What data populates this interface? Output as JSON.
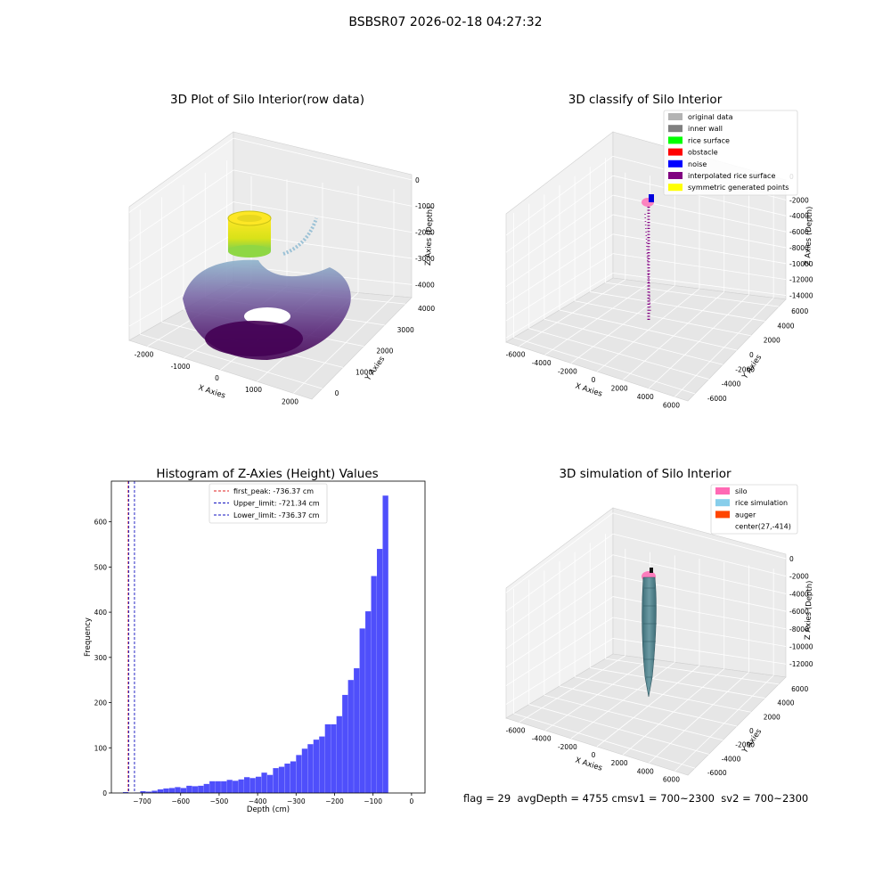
{
  "figure": {
    "suptitle": "BSBSR07 2026-02-18 04:27:32",
    "footer": {
      "flag": "flag = 29",
      "avg_depth": "avgDepth = 4755 cm",
      "sv1": "sv1 = 700~2300",
      "sv2": "sv2 = 700~2300"
    }
  },
  "colors": {
    "histogram_bar": "#4f4ffb",
    "first_peak_line": "#e02020",
    "limit_lines": "#1010c0",
    "legend_original": "#b3b3b3",
    "legend_inner_wall": "#808080",
    "legend_rice_surface": "#00ff00",
    "legend_obstacle": "#ff0000",
    "legend_noise": "#0000ff",
    "legend_interpolated": "#800080",
    "legend_symmetric": "#ffff00",
    "legend_silo": "#ff69b4",
    "legend_rice_sim": "#87ceeb",
    "legend_auger": "#ff4500"
  },
  "chart_data": [
    {
      "type": "scatter3d",
      "title": "3D Plot of Silo Interior(row data)",
      "xlabel": "X Axies",
      "ylabel": "Y Axies",
      "zlabel": "Z Axies (Depth)",
      "x_ticks": [
        "-2000",
        "-1000",
        "0",
        "1000",
        "2000"
      ],
      "y_ticks": [
        "0",
        "1000",
        "2000",
        "3000",
        "4000"
      ],
      "z_ticks": [
        "0",
        "-1000",
        "-2000",
        "-3000",
        "-4000"
      ],
      "xlim": [
        -2500,
        2500
      ],
      "ylim": [
        -500,
        4300
      ],
      "zlim": [
        -4500,
        200
      ],
      "colormap": "viridis",
      "grid": true
    },
    {
      "type": "scatter3d",
      "title": "3D classify of Silo Interior",
      "xlabel": "X Axies",
      "ylabel": "Y Axies",
      "zlabel": "Z Axies (Depth)",
      "x_ticks": [
        "-6000",
        "-4000",
        "-2000",
        "0",
        "2000",
        "4000",
        "6000"
      ],
      "y_ticks": [
        "-6000",
        "-4000",
        "-2000",
        "0",
        "2000",
        "4000",
        "6000"
      ],
      "z_ticks": [
        "-2000",
        "-4000",
        "-6000",
        "-8000",
        "-10000",
        "-12000",
        "-14000"
      ],
      "z_top_tick": "0",
      "xlim": [
        -7000,
        7000
      ],
      "ylim": [
        -7000,
        7000
      ],
      "zlim": [
        -14500,
        500
      ],
      "legend": [
        "original data",
        "inner wall",
        "rice surface",
        "obstacle",
        "noise",
        "interpolated rice surface",
        "symmetric generated points"
      ],
      "legend_position": "top-right",
      "grid": true
    },
    {
      "type": "bar",
      "title": "Histogram of Z-Axies (Height) Values",
      "xlabel": "Depth (cm)",
      "ylabel": "Frequency",
      "xlim": [
        -780,
        35
      ],
      "ylim": [
        0,
        690
      ],
      "x_ticks": [
        -700,
        -600,
        -500,
        -400,
        -300,
        -200,
        -100,
        0
      ],
      "y_ticks": [
        0,
        100,
        200,
        300,
        400,
        500,
        600
      ],
      "bin_width": 15,
      "bin_start": -750,
      "values": [
        2,
        0,
        1,
        4,
        3,
        5,
        8,
        10,
        11,
        13,
        11,
        16,
        15,
        16,
        20,
        26,
        26,
        26,
        29,
        27,
        30,
        35,
        33,
        36,
        45,
        40,
        55,
        58,
        65,
        70,
        84,
        98,
        108,
        118,
        125,
        152,
        152,
        170,
        217,
        250,
        276,
        364,
        402,
        480,
        540,
        658
      ],
      "lines": [
        {
          "name": "first_peak: -736.37 cm",
          "x": -736.37,
          "style": "red-dashed"
        },
        {
          "name": "Upper_limit: -721.34 cm",
          "x": -721.34,
          "style": "blue-dashed"
        },
        {
          "name": "Lower_limit: -736.37 cm",
          "x": -736.37,
          "style": "blue-dashed"
        }
      ],
      "legend_position": "top-center",
      "grid": false
    },
    {
      "type": "surface3d",
      "title": "3D simulation of Silo Interior",
      "xlabel": "X Axies",
      "ylabel": "Y Axies",
      "zlabel": "Z Axies (Depth)",
      "x_ticks": [
        "-6000",
        "-4000",
        "-2000",
        "0",
        "2000",
        "4000",
        "6000"
      ],
      "y_ticks": [
        "-6000",
        "-4000",
        "-2000",
        "0",
        "2000",
        "4000",
        "6000"
      ],
      "z_ticks": [
        "0",
        "-2000",
        "-4000",
        "-6000",
        "-8000",
        "-10000",
        "-12000"
      ],
      "xlim": [
        -7000,
        7000
      ],
      "ylim": [
        -7000,
        7000
      ],
      "zlim": [
        -13500,
        500
      ],
      "legend": [
        "silo",
        "rice simulation",
        "auger",
        "center(27,-414)"
      ],
      "legend_position": "top-right",
      "grid": true
    }
  ]
}
